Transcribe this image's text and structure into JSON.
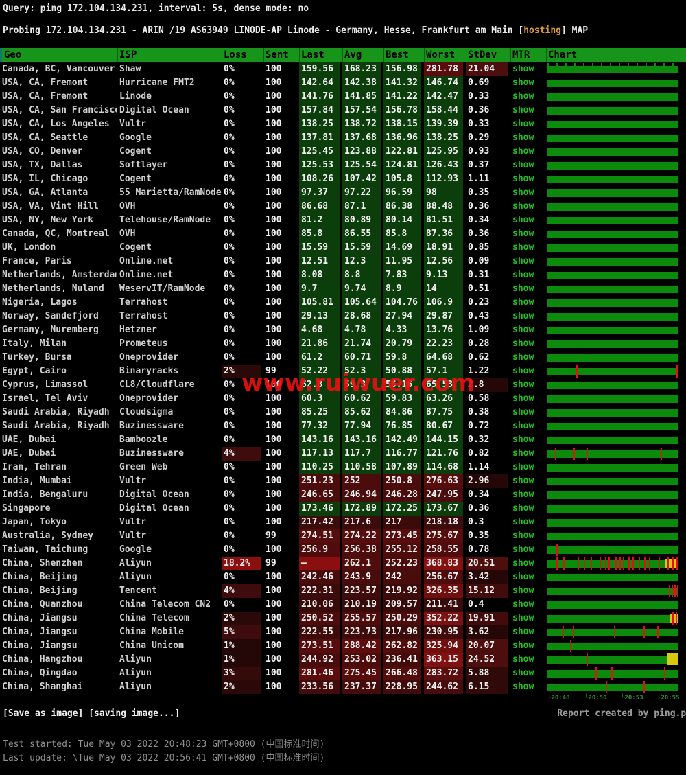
{
  "header": {
    "query_line": "Query: ping 172.104.134.231, interval: 5s, dense mode: no",
    "probing": {
      "prefix": "Probing 172.104.134.231 - ARIN /19 ",
      "asn_link": "AS63949",
      "middle": " LINODE-AP Linode - Germany, Hesse, Frankfurt am Main [",
      "hosting": "hosting",
      "after_hosting": "] ",
      "map_link": "MAP"
    }
  },
  "table": {
    "columns": [
      "Geo",
      "ISP",
      "Loss",
      "Sent",
      "Last",
      "Avg",
      "Best",
      "Worst",
      "StDev",
      "MTR",
      "Chart"
    ],
    "mtr_label": "show",
    "rows": [
      {
        "g": "Canada, BC, Vancouver",
        "i": "Shaw",
        "l": "0%",
        "s": "100",
        "la": "159.56",
        "av": "168.23",
        "be": "156.98",
        "wo": "281.78",
        "sd": "21.04",
        "ch": {
          "bump": 1
        }
      },
      {
        "g": "USA, CA, Fremont",
        "i": "Hurricane FMT2",
        "l": "0%",
        "s": "100",
        "la": "142.64",
        "av": "142.38",
        "be": "141.32",
        "wo": "146.74",
        "sd": "0.69"
      },
      {
        "g": "USA, CA, Fremont",
        "i": "Linode",
        "l": "0%",
        "s": "100",
        "la": "141.76",
        "av": "141.85",
        "be": "141.22",
        "wo": "142.47",
        "sd": "0.33"
      },
      {
        "g": "USA, CA, San Francisco",
        "i": "Digital Ocean",
        "l": "0%",
        "s": "100",
        "la": "157.84",
        "av": "157.54",
        "be": "156.78",
        "wo": "158.44",
        "sd": "0.36"
      },
      {
        "g": "USA, CA, Los Angeles",
        "i": "Vultr",
        "l": "0%",
        "s": "100",
        "la": "138.25",
        "av": "138.72",
        "be": "138.15",
        "wo": "139.39",
        "sd": "0.33"
      },
      {
        "g": "USA, CA, Seattle",
        "i": "Google",
        "l": "0%",
        "s": "100",
        "la": "137.81",
        "av": "137.68",
        "be": "136.96",
        "wo": "138.25",
        "sd": "0.29"
      },
      {
        "g": "USA, CO, Denver",
        "i": "Cogent",
        "l": "0%",
        "s": "100",
        "la": "125.45",
        "av": "123.88",
        "be": "122.81",
        "wo": "125.95",
        "sd": "0.93"
      },
      {
        "g": "USA, TX, Dallas",
        "i": "Softlayer",
        "l": "0%",
        "s": "100",
        "la": "125.53",
        "av": "125.54",
        "be": "124.81",
        "wo": "126.43",
        "sd": "0.37"
      },
      {
        "g": "USA, IL, Chicago",
        "i": "Cogent",
        "l": "0%",
        "s": "100",
        "la": "108.26",
        "av": "107.42",
        "be": "105.8",
        "wo": "112.93",
        "sd": "1.11"
      },
      {
        "g": "USA, GA, Atlanta",
        "i": "55 Marietta/RamNode",
        "l": "0%",
        "s": "100",
        "la": "97.37",
        "av": "97.22",
        "be": "96.59",
        "wo": "98",
        "sd": "0.35"
      },
      {
        "g": "USA, VA, Vint Hill",
        "i": "OVH",
        "l": "0%",
        "s": "100",
        "la": "86.68",
        "av": "87.1",
        "be": "86.38",
        "wo": "88.48",
        "sd": "0.36"
      },
      {
        "g": "USA, NY, New York",
        "i": "Telehouse/RamNode",
        "l": "0%",
        "s": "100",
        "la": "81.2",
        "av": "80.89",
        "be": "80.14",
        "wo": "81.51",
        "sd": "0.34"
      },
      {
        "g": "Canada, QC, Montreal",
        "i": "OVH",
        "l": "0%",
        "s": "100",
        "la": "85.8",
        "av": "86.55",
        "be": "85.8",
        "wo": "87.36",
        "sd": "0.36"
      },
      {
        "g": "UK, London",
        "i": "Cogent",
        "l": "0%",
        "s": "100",
        "la": "15.59",
        "av": "15.59",
        "be": "14.69",
        "wo": "18.91",
        "sd": "0.85"
      },
      {
        "g": "France, Paris",
        "i": "Online.net",
        "l": "0%",
        "s": "100",
        "la": "12.51",
        "av": "12.3",
        "be": "11.95",
        "wo": "12.56",
        "sd": "0.09"
      },
      {
        "g": "Netherlands, Amsterdam",
        "i": "Online.net",
        "l": "0%",
        "s": "100",
        "la": "8.08",
        "av": "8.8",
        "be": "7.83",
        "wo": "9.13",
        "sd": "0.31"
      },
      {
        "g": "Netherlands, Nuland",
        "i": "WeservIT/RamNode",
        "l": "0%",
        "s": "100",
        "la": "9.7",
        "av": "9.74",
        "be": "8.9",
        "wo": "14",
        "sd": "0.51"
      },
      {
        "g": "Nigeria, Lagos",
        "i": "Terrahost",
        "l": "0%",
        "s": "100",
        "la": "105.81",
        "av": "105.64",
        "be": "104.76",
        "wo": "106.9",
        "sd": "0.23"
      },
      {
        "g": "Norway, Sandefjord",
        "i": "Terrahost",
        "l": "0%",
        "s": "100",
        "la": "29.13",
        "av": "28.68",
        "be": "27.94",
        "wo": "29.87",
        "sd": "0.43"
      },
      {
        "g": "Germany, Nuremberg",
        "i": "Hetzner",
        "l": "0%",
        "s": "100",
        "la": "4.68",
        "av": "4.78",
        "be": "4.33",
        "wo": "13.76",
        "sd": "1.09"
      },
      {
        "g": "Italy, Milan",
        "i": "Prometeus",
        "l": "0%",
        "s": "100",
        "la": "21.86",
        "av": "21.74",
        "be": "20.79",
        "wo": "22.23",
        "sd": "0.28"
      },
      {
        "g": "Turkey, Bursa",
        "i": "Oneprovider",
        "l": "0%",
        "s": "100",
        "la": "61.2",
        "av": "60.71",
        "be": "59.8",
        "wo": "64.68",
        "sd": "0.62"
      },
      {
        "g": "Egypt, Cairo",
        "i": "Binaryracks",
        "l": "2%",
        "s": "99",
        "la": "52.22",
        "av": "52.3",
        "be": "50.88",
        "wo": "57.1",
        "sd": "1.22",
        "ch": {
          "sp": [
            0.22,
            0.99
          ]
        }
      },
      {
        "g": "Cyprus, Limassol",
        "i": "CL8/Cloudflare",
        "l": "0%",
        "s": "100",
        "la": "62.8",
        "av": "59.3",
        "be": "56.16",
        "wo": "65.53",
        "sd": "2.8"
      },
      {
        "g": "Israel, Tel Aviv",
        "i": "Oneprovider",
        "l": "0%",
        "s": "100",
        "la": "60.3",
        "av": "60.62",
        "be": "59.83",
        "wo": "63.26",
        "sd": "0.58"
      },
      {
        "g": "Saudi Arabia, Riyadh",
        "i": "Cloudsigma",
        "l": "0%",
        "s": "100",
        "la": "85.25",
        "av": "85.62",
        "be": "84.86",
        "wo": "87.75",
        "sd": "0.38"
      },
      {
        "g": "Saudi Arabia, Riyadh",
        "i": "Buzinessware",
        "l": "0%",
        "s": "100",
        "la": "77.32",
        "av": "77.94",
        "be": "76.85",
        "wo": "80.67",
        "sd": "0.72"
      },
      {
        "g": "UAE, Dubai",
        "i": "Bamboozle",
        "l": "0%",
        "s": "100",
        "la": "143.16",
        "av": "143.16",
        "be": "142.49",
        "wo": "144.15",
        "sd": "0.32"
      },
      {
        "g": "UAE, Dubai",
        "i": "Buzinessware",
        "l": "4%",
        "s": "100",
        "la": "117.13",
        "av": "117.7",
        "be": "116.77",
        "wo": "121.76",
        "sd": "0.82",
        "ch": {
          "sp": [
            0.056,
            0.202,
            0.298,
            0.868
          ]
        }
      },
      {
        "g": "Iran, Tehran",
        "i": "Green Web",
        "l": "0%",
        "s": "100",
        "la": "110.25",
        "av": "110.58",
        "be": "107.89",
        "wo": "114.68",
        "sd": "1.14"
      },
      {
        "g": "India, Mumbai",
        "i": "Vultr",
        "l": "0%",
        "s": "100",
        "la": "251.23",
        "av": "252",
        "be": "250.8",
        "wo": "276.63",
        "sd": "2.96"
      },
      {
        "g": "India, Bengaluru",
        "i": "Digital Ocean",
        "l": "0%",
        "s": "100",
        "la": "246.65",
        "av": "246.94",
        "be": "246.28",
        "wo": "247.95",
        "sd": "0.34"
      },
      {
        "g": "Singapore",
        "i": "Digital Ocean",
        "l": "0%",
        "s": "100",
        "la": "173.46",
        "av": "172.89",
        "be": "172.25",
        "wo": "173.67",
        "sd": "0.36"
      },
      {
        "g": "Japan, Tokyo",
        "i": "Vultr",
        "l": "0%",
        "s": "100",
        "la": "217.42",
        "av": "217.6",
        "be": "217",
        "wo": "218.18",
        "sd": "0.3"
      },
      {
        "g": "Australia, Sydney",
        "i": "Vultr",
        "l": "0%",
        "s": "99",
        "la": "274.51",
        "av": "274.22",
        "be": "273.45",
        "wo": "275.67",
        "sd": "0.35"
      },
      {
        "g": "Taiwan, Taichung",
        "i": "Google",
        "l": "0%",
        "s": "100",
        "la": "256.9",
        "av": "256.38",
        "be": "255.12",
        "wo": "258.55",
        "sd": "0.78",
        "ch": {
          "sp": [
            0.068
          ]
        }
      },
      {
        "g": "China, Shenzhen",
        "i": "Aliyun",
        "l": "18.2%",
        "s": "99",
        "la": "–",
        "av": "262.1",
        "be": "252.23",
        "wo": "368.83",
        "sd": "20.51",
        "ch": {
          "sp": [
            0.07,
            0.12,
            0.23,
            0.28,
            0.33,
            0.4,
            0.44,
            0.47,
            0.52,
            0.55,
            0.58,
            0.62,
            0.65,
            0.7,
            0.74,
            0.78,
            0.85,
            0.92,
            0.96,
            0.99
          ],
          "yl": [
            0.9,
            1.0
          ]
        }
      },
      {
        "g": "China, Beijing",
        "i": "Aliyun",
        "l": "0%",
        "s": "100",
        "la": "242.46",
        "av": "243.9",
        "be": "242",
        "wo": "256.67",
        "sd": "3.42"
      },
      {
        "g": "China, Beijing",
        "i": "Tencent",
        "l": "4%",
        "s": "100",
        "la": "222.31",
        "av": "223.57",
        "be": "219.92",
        "wo": "326.35",
        "sd": "15.12",
        "ch": {
          "sp": [
            0.93,
            0.955,
            0.975,
            0.995
          ]
        }
      },
      {
        "g": "China, Quanzhou",
        "i": "China Telecom CN2",
        "l": "0%",
        "s": "100",
        "la": "210.06",
        "av": "210.19",
        "be": "209.57",
        "wo": "211.41",
        "sd": "0.4"
      },
      {
        "g": "China, Jiangsu",
        "i": "China Telecom",
        "l": "2%",
        "s": "100",
        "la": "250.52",
        "av": "255.57",
        "be": "250.29",
        "wo": "352.22",
        "sd": "19.91",
        "ch": {
          "sp": [
            0.96,
            0.985
          ],
          "yl": [
            0.94,
            1.0
          ]
        }
      },
      {
        "g": "China, Jiangsu",
        "i": "China Mobile",
        "l": "5%",
        "s": "100",
        "la": "222.55",
        "av": "223.73",
        "be": "217.96",
        "wo": "230.95",
        "sd": "3.62",
        "ch": {
          "sp": [
            0.114,
            0.193,
            0.509,
            0.737,
            0.842
          ]
        }
      },
      {
        "g": "China, Jiangsu",
        "i": "China Unicom",
        "l": "1%",
        "s": "100",
        "la": "273.51",
        "av": "288.42",
        "be": "262.82",
        "wo": "325.94",
        "sd": "20.07",
        "ch": {
          "sp": [
            0.175
          ]
        }
      },
      {
        "g": "China, Hangzhou",
        "i": "Aliyun",
        "l": "1%",
        "s": "100",
        "la": "244.92",
        "av": "253.02",
        "be": "236.41",
        "wo": "363.15",
        "sd": "24.52",
        "ch": {
          "sp": [
            0.3
          ],
          "yl": [
            0.92,
            1.0
          ],
          "tall": 1
        }
      },
      {
        "g": "China, Qingdao",
        "i": "Aliyun",
        "l": "3%",
        "s": "100",
        "la": "281.46",
        "av": "275.45",
        "be": "266.48",
        "wo": "283.72",
        "sd": "5.88",
        "ch": {
          "sp": [
            0.368,
            0.489,
            0.895
          ]
        }
      },
      {
        "g": "China, Shanghai",
        "i": "Aliyun",
        "l": "2%",
        "s": "100",
        "la": "233.56",
        "av": "237.37",
        "be": "228.95",
        "wo": "244.62",
        "sd": "6.15",
        "ch": {
          "sp": [
            0.447,
            0.737
          ]
        }
      }
    ]
  },
  "chart_axis": [
    "└20:48",
    "└20:50",
    "└20:53",
    "└20:55"
  ],
  "watermark": "www.ruiwuer.com",
  "footer": {
    "bracket_open": "[",
    "bracket_close": "]",
    "save_link": "Save as image",
    "saving_status": " [saving image...]",
    "report": "Report created by ping.pe",
    "test_started": "Test started: Tue May 03 2022 20:48:23 GMT+0800 (中国标准时间)",
    "last_update": "Last update: \\Tue May 03 2022 20:56:41 GMT+0800 (中国标准时间)"
  },
  "colors": {
    "header_green": "#17941a",
    "bar_green": "#0b8a0b",
    "link_green": "#1ec41e",
    "axis_green": "#2e8f2e",
    "hosting_orange": "#e09a35",
    "watermark_red": "#e81010",
    "spike_red": "#e01212",
    "yellow": "#d6ca10",
    "cell_green": "#0c3e0c",
    "red_base": "#330a0a",
    "red_bright": "#8b1111",
    "loss_red": "#8b0f0f"
  }
}
